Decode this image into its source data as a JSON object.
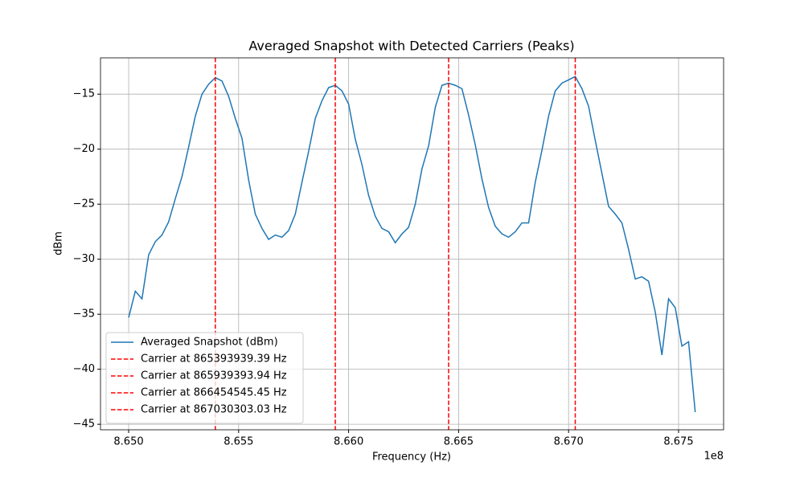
{
  "chart_data": {
    "type": "line",
    "title": "Averaged Snapshot with Detected Carriers (Peaks)",
    "x_label": "Frequency (Hz)",
    "y_label": "dBm",
    "x_offset_label": "1e8",
    "x": [
      865000000,
      865030303.03,
      865060606.06,
      865090909.09,
      865121212.12,
      865151515.15,
      865181818.18,
      865212121.21,
      865242424.24,
      865272727.27,
      865303030.3,
      865333333.33,
      865363636.36,
      865393939.39,
      865424242.42,
      865454545.45,
      865484848.48,
      865515151.52,
      865545454.55,
      865575757.58,
      865606060.61,
      865636363.64,
      865666666.67,
      865696969.7,
      865727272.73,
      865757575.76,
      865787878.79,
      865818181.82,
      865848484.85,
      865878787.88,
      865909090.91,
      865939393.94,
      865969696.97,
      866000000,
      866030303.03,
      866060606.06,
      866090909.09,
      866121212.12,
      866151515.15,
      866181818.18,
      866212121.21,
      866242424.24,
      866272727.27,
      866303030.3,
      866333333.33,
      866363636.36,
      866393939.39,
      866424242.42,
      866454545.45,
      866484848.48,
      866515151.52,
      866545454.55,
      866575757.58,
      866606060.61,
      866636363.64,
      866666666.67,
      866696969.7,
      866727272.73,
      866757575.76,
      866787878.79,
      866818181.82,
      866848484.85,
      866878787.88,
      866909090.91,
      866939393.94,
      866969696.97,
      867000000,
      867030303.03,
      867060606.06,
      867090909.09,
      867121212.12,
      867151515.15,
      867181818.18,
      867212121.21,
      867242424.24,
      867272727.27,
      867303030.3,
      867333333.33,
      867363636.36,
      867393939.39,
      867424242.42,
      867454545.45,
      867484848.48,
      867515151.52,
      867545454.55,
      867575757.58
    ],
    "series": [
      {
        "name": "Averaged Snapshot (dBm)",
        "color": "#1f77b4",
        "values": [
          -35.3,
          -32.9,
          -33.6,
          -29.6,
          -28.4,
          -27.8,
          -26.6,
          -24.5,
          -22.5,
          -19.8,
          -17.0,
          -15.0,
          -14.1,
          -13.5,
          -13.8,
          -15.2,
          -17.2,
          -19.0,
          -22.8,
          -25.9,
          -27.2,
          -28.2,
          -27.8,
          -28.0,
          -27.4,
          -25.9,
          -23.0,
          -20.2,
          -17.2,
          -15.6,
          -14.4,
          -14.2,
          -14.7,
          -15.9,
          -19.1,
          -21.4,
          -24.2,
          -26.1,
          -27.2,
          -27.5,
          -28.5,
          -27.7,
          -27.1,
          -25.0,
          -21.8,
          -19.7,
          -16.2,
          -14.2,
          -14.0,
          -14.2,
          -14.5,
          -16.9,
          -19.6,
          -22.7,
          -25.3,
          -27.0,
          -27.7,
          -28.0,
          -27.5,
          -26.7,
          -26.7,
          -23.0,
          -20.1,
          -17.0,
          -14.7,
          -14.0,
          -13.7,
          -13.4,
          -14.5,
          -16.1,
          -19.2,
          -22.2,
          -25.2,
          -25.9,
          -26.7,
          -29.1,
          -31.8,
          -31.6,
          -32.0,
          -34.8,
          -38.7,
          -33.6,
          -34.4,
          -37.9,
          -37.5,
          -43.9
        ]
      }
    ],
    "carriers": [
      {
        "x": 865393939.39,
        "name": "Carrier at 865393939.39 Hz",
        "color": "#ff0000"
      },
      {
        "x": 865939393.94,
        "name": "Carrier at 865939393.94 Hz",
        "color": "#ff0000"
      },
      {
        "x": 866454545.45,
        "name": "Carrier at 866454545.45 Hz",
        "color": "#ff0000"
      },
      {
        "x": 867030303.03,
        "name": "Carrier at 867030303.03 Hz",
        "color": "#ff0000"
      }
    ],
    "xlim": [
      864872000,
      867704700
    ],
    "ylim": [
      -45.5,
      -11.7
    ],
    "xticks": [
      {
        "value": 865000000,
        "label": "8.650"
      },
      {
        "value": 865500000,
        "label": "8.655"
      },
      {
        "value": 866000000,
        "label": "8.660"
      },
      {
        "value": 866500000,
        "label": "8.665"
      },
      {
        "value": 867000000,
        "label": "8.670"
      },
      {
        "value": 867500000,
        "label": "8.675"
      }
    ],
    "yticks": [
      {
        "value": -45,
        "label": "−45"
      },
      {
        "value": -40,
        "label": "−40"
      },
      {
        "value": -35,
        "label": "−35"
      },
      {
        "value": -30,
        "label": "−30"
      },
      {
        "value": -25,
        "label": "−25"
      },
      {
        "value": -20,
        "label": "−20"
      },
      {
        "value": -15,
        "label": "−15"
      }
    ],
    "grid": true,
    "legend": "lower left"
  }
}
